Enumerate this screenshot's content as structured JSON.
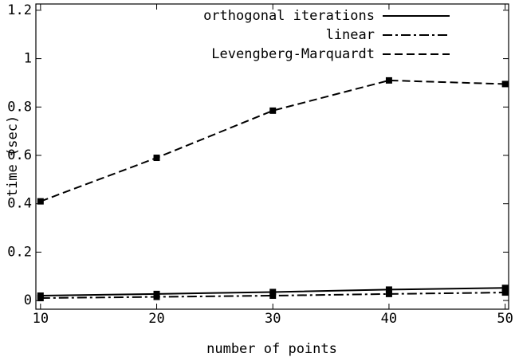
{
  "chart_data": {
    "type": "line",
    "x_label": "number of points",
    "y_label": "time (sec)",
    "x": [
      10,
      20,
      30,
      40,
      50
    ],
    "series": [
      {
        "name": "orthogonal iterations",
        "color": "#000000",
        "dash": "solid",
        "values": [
          0.02,
          0.027,
          0.035,
          0.045,
          0.052
        ]
      },
      {
        "name": "linear",
        "color": "#000000",
        "dash": "dashdot",
        "values": [
          0.01,
          0.015,
          0.02,
          0.027,
          0.033
        ]
      },
      {
        "name": "Levengberg-Marquardt",
        "color": "#000000",
        "dash": "dashed",
        "values": [
          0.41,
          0.59,
          0.785,
          0.91,
          0.895
        ]
      }
    ],
    "xlim": [
      9.6,
      50.3
    ],
    "xticks": [
      10,
      20,
      30,
      40,
      50
    ],
    "ylim": [
      -0.036,
      1.226
    ],
    "yticks": [
      0,
      0.2,
      0.4,
      0.6,
      0.8,
      1,
      1.2
    ],
    "legend": "top",
    "grid": false
  }
}
